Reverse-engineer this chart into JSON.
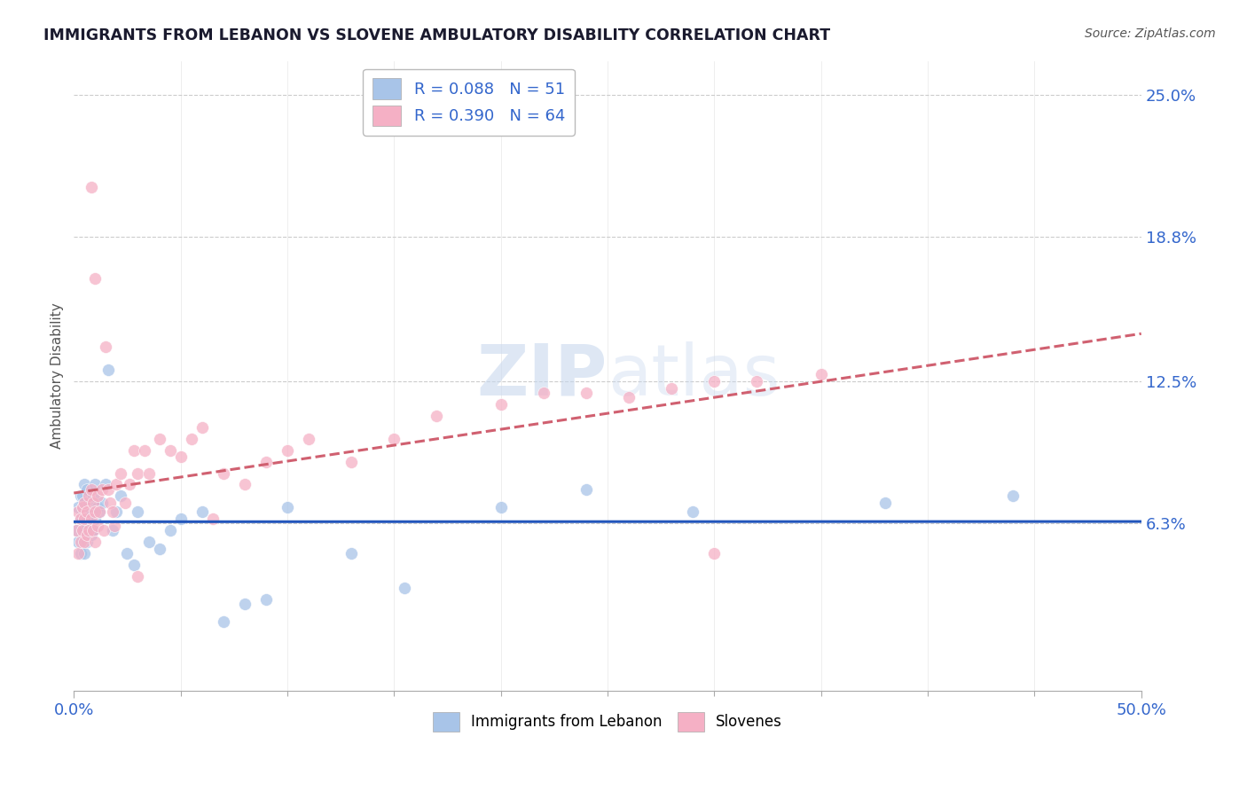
{
  "title": "IMMIGRANTS FROM LEBANON VS SLOVENE AMBULATORY DISABILITY CORRELATION CHART",
  "source": "Source: ZipAtlas.com",
  "ylabel": "Ambulatory Disability",
  "xmin": 0.0,
  "xmax": 0.5,
  "ymin": -0.01,
  "ymax": 0.265,
  "ytick_vals": [
    0.0,
    0.063,
    0.125,
    0.188,
    0.25
  ],
  "ytick_labels": [
    "",
    "6.3%",
    "12.5%",
    "18.8%",
    "25.0%"
  ],
  "xtick_vals": [
    0.0,
    0.5
  ],
  "xtick_labels": [
    "0.0%",
    "50.0%"
  ],
  "legend_label1": "R = 0.088   N = 51",
  "legend_label2": "R = 0.390   N = 64",
  "series1_color": "#a8c4e8",
  "series2_color": "#f5b0c5",
  "line1_color": "#2255bb",
  "line2_color": "#d06070",
  "watermark_color": "#dde8f5",
  "series1_x": [
    0.001,
    0.002,
    0.002,
    0.003,
    0.003,
    0.003,
    0.004,
    0.004,
    0.004,
    0.004,
    0.005,
    0.005,
    0.005,
    0.006,
    0.006,
    0.006,
    0.007,
    0.007,
    0.008,
    0.008,
    0.009,
    0.009,
    0.01,
    0.01,
    0.011,
    0.012,
    0.013,
    0.015,
    0.016,
    0.018,
    0.02,
    0.022,
    0.025,
    0.028,
    0.03,
    0.035,
    0.04,
    0.045,
    0.05,
    0.06,
    0.07,
    0.08,
    0.09,
    0.1,
    0.13,
    0.155,
    0.2,
    0.24,
    0.29,
    0.38,
    0.44
  ],
  "series1_y": [
    0.06,
    0.055,
    0.07,
    0.05,
    0.065,
    0.075,
    0.06,
    0.065,
    0.07,
    0.075,
    0.05,
    0.06,
    0.08,
    0.055,
    0.065,
    0.078,
    0.06,
    0.072,
    0.058,
    0.068,
    0.06,
    0.075,
    0.065,
    0.08,
    0.07,
    0.068,
    0.072,
    0.08,
    0.13,
    0.06,
    0.068,
    0.075,
    0.05,
    0.045,
    0.068,
    0.055,
    0.052,
    0.06,
    0.065,
    0.068,
    0.02,
    0.028,
    0.03,
    0.07,
    0.05,
    0.035,
    0.07,
    0.078,
    0.068,
    0.072,
    0.075
  ],
  "series2_x": [
    0.001,
    0.002,
    0.002,
    0.003,
    0.003,
    0.004,
    0.004,
    0.005,
    0.005,
    0.005,
    0.006,
    0.006,
    0.007,
    0.007,
    0.008,
    0.008,
    0.009,
    0.009,
    0.01,
    0.01,
    0.011,
    0.011,
    0.012,
    0.013,
    0.014,
    0.015,
    0.016,
    0.017,
    0.018,
    0.019,
    0.02,
    0.022,
    0.024,
    0.026,
    0.028,
    0.03,
    0.033,
    0.035,
    0.04,
    0.045,
    0.05,
    0.055,
    0.06,
    0.065,
    0.07,
    0.08,
    0.09,
    0.1,
    0.11,
    0.13,
    0.15,
    0.17,
    0.2,
    0.22,
    0.24,
    0.26,
    0.28,
    0.3,
    0.32,
    0.35,
    0.01,
    0.008,
    0.3,
    0.03
  ],
  "series2_y": [
    0.06,
    0.05,
    0.068,
    0.055,
    0.065,
    0.06,
    0.07,
    0.055,
    0.065,
    0.072,
    0.058,
    0.068,
    0.06,
    0.075,
    0.065,
    0.078,
    0.06,
    0.072,
    0.055,
    0.068,
    0.062,
    0.075,
    0.068,
    0.078,
    0.06,
    0.14,
    0.078,
    0.072,
    0.068,
    0.062,
    0.08,
    0.085,
    0.072,
    0.08,
    0.095,
    0.085,
    0.095,
    0.085,
    0.1,
    0.095,
    0.092,
    0.1,
    0.105,
    0.065,
    0.085,
    0.08,
    0.09,
    0.095,
    0.1,
    0.09,
    0.1,
    0.11,
    0.115,
    0.12,
    0.12,
    0.118,
    0.122,
    0.125,
    0.125,
    0.128,
    0.17,
    0.21,
    0.05,
    0.04
  ]
}
